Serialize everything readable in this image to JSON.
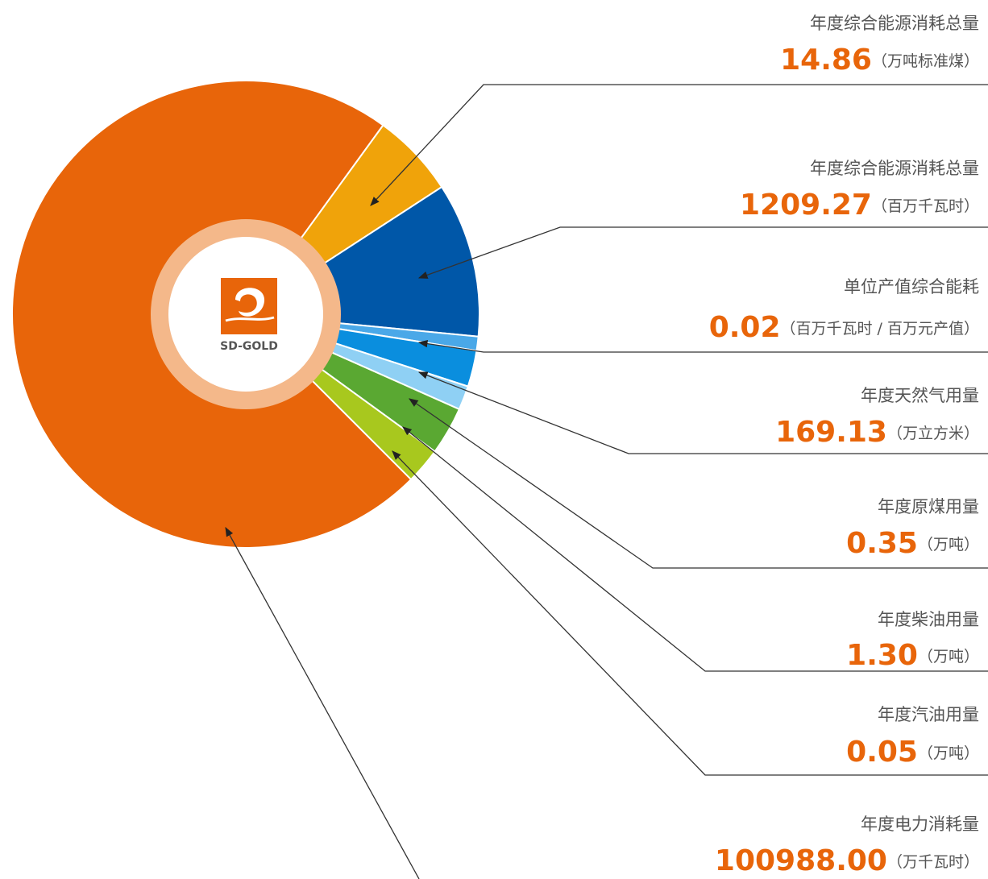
{
  "logo": {
    "text": "SD-GOLD"
  },
  "items": [
    {
      "label": "年度综合能源消耗总量",
      "value": "14.86",
      "unit": "（万吨标准煤）"
    },
    {
      "label": "年度综合能源消耗总量",
      "value": "1209.27",
      "unit": "（百万千瓦时）"
    },
    {
      "label": "单位产值综合能耗",
      "value": "0.02",
      "unit": "（百万千瓦时 / 百万元产值）"
    },
    {
      "label": "年度天然气用量",
      "value": "169.13",
      "unit": "（万立方米）"
    },
    {
      "label": "年度原煤用量",
      "value": "0.35",
      "unit": "（万吨）"
    },
    {
      "label": "年度柴油用量",
      "value": "1.30",
      "unit": "（万吨）"
    },
    {
      "label": "年度汽油用量",
      "value": "0.05",
      "unit": "（万吨）"
    },
    {
      "label": "年度电力消耗量",
      "value": "100988.00",
      "unit": "（万千瓦时）"
    }
  ]
}
